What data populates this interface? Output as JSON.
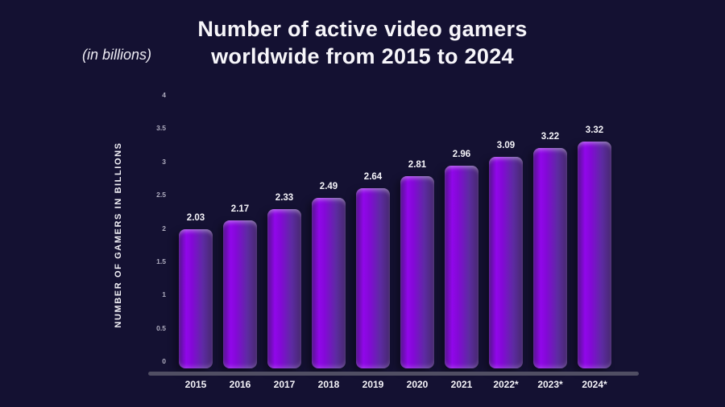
{
  "title": {
    "line1": "Number of active video gamers",
    "line2": "worldwide from 2015 to 2024"
  },
  "subtitle": "(in billions)",
  "y_axis_title": "NUMBER OF GAMERS IN BILLIONS",
  "chart_data": {
    "type": "bar",
    "title": "Number of active video gamers worldwide from 2015 to 2024",
    "subtitle": "(in billions)",
    "xlabel": "",
    "ylabel": "NUMBER OF GAMERS IN BILLIONS",
    "categories": [
      "2015",
      "2016",
      "2017",
      "2018",
      "2019",
      "2020",
      "2021",
      "2022*",
      "2023*",
      "2024*"
    ],
    "values": [
      2.03,
      2.17,
      2.33,
      2.49,
      2.64,
      2.81,
      2.96,
      3.09,
      3.22,
      3.32
    ],
    "value_labels": [
      "2.03",
      "2.17",
      "2.33",
      "2.49",
      "2.64",
      "2.81",
      "2.96",
      "3.09",
      "3.22",
      "3.32"
    ],
    "y_tick_labels": [
      "4",
      "3.5",
      "3",
      "2.5",
      "2",
      "1.5",
      "1",
      "0.5",
      "0"
    ],
    "ylim": [
      0,
      4
    ],
    "grid": false,
    "legend_position": "none",
    "colors": {
      "background": "#141132",
      "bar_bright": "#9107ea",
      "bar_edge_dark": "#46286f",
      "axis_line": "#504e63",
      "label_text": "#f5f4f9",
      "tick_text": "#b0aec0"
    }
  }
}
